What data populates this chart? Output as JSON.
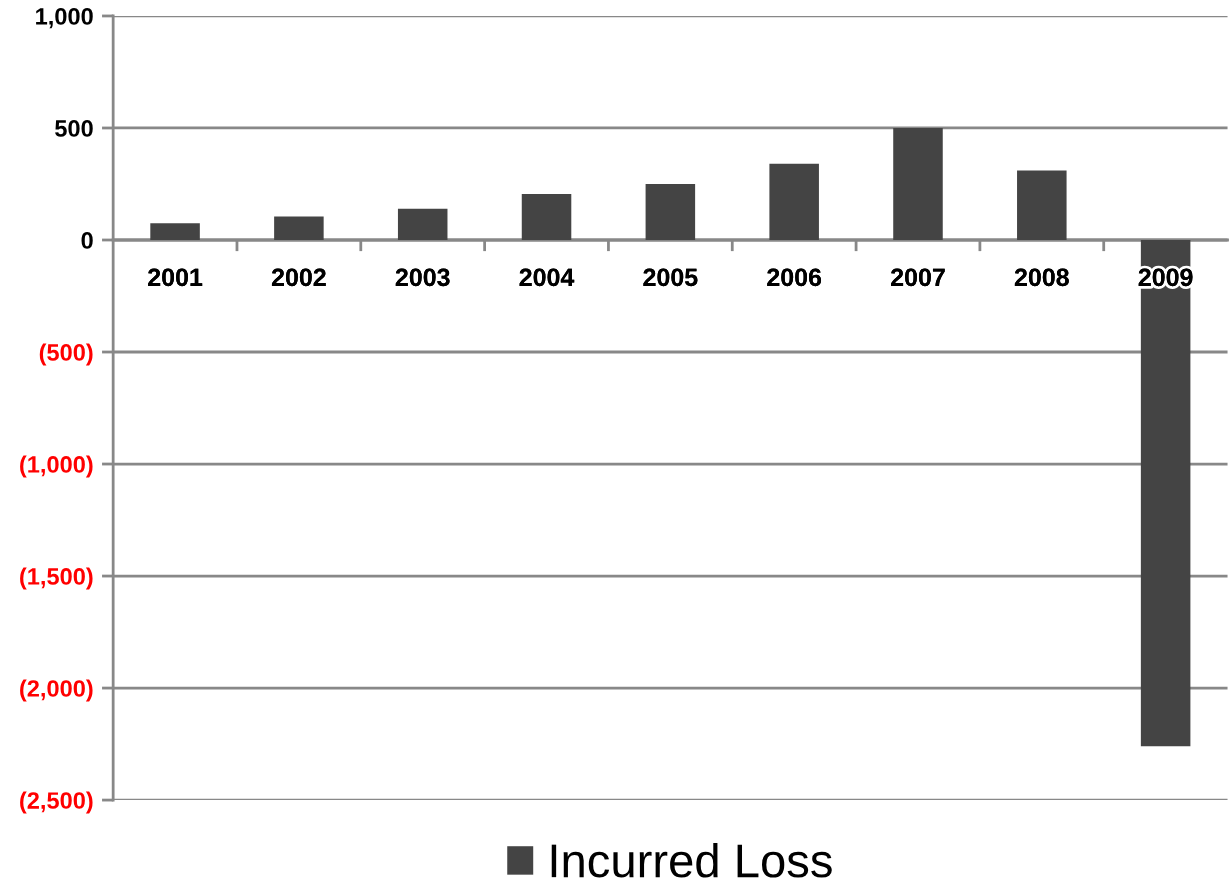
{
  "chart_data": {
    "type": "bar",
    "categories": [
      "2001",
      "2002",
      "2003",
      "2004",
      "2005",
      "2006",
      "2007",
      "2008",
      "2009"
    ],
    "series": [
      {
        "name": "Incurred Loss",
        "color": "#444444",
        "values": [
          75,
          105,
          140,
          205,
          250,
          340,
          500,
          310,
          -2260
        ]
      }
    ],
    "ylim": [
      -2500,
      1000
    ],
    "yticks": [
      {
        "value": -2500,
        "label": "(2,500)"
      },
      {
        "value": -2000,
        "label": "(2,000)"
      },
      {
        "value": -1500,
        "label": "(1,500)"
      },
      {
        "value": -1000,
        "label": "(1,000)"
      },
      {
        "value": -500,
        "label": "(500)"
      },
      0,
      500,
      {
        "value": 1000,
        "label": "1,000"
      }
    ],
    "grid": "y",
    "legend": "bottom"
  }
}
